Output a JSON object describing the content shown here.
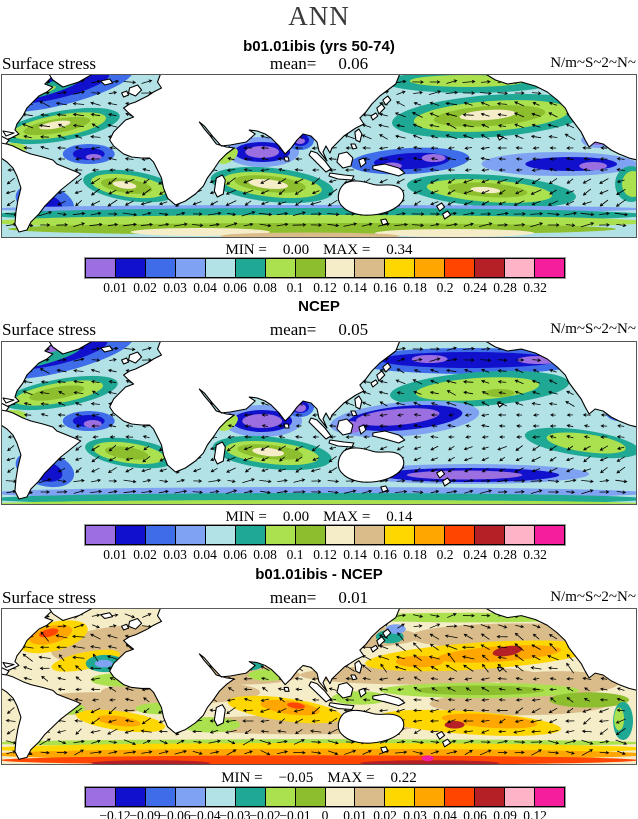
{
  "figure_title": "ANN",
  "palette": [
    "#9b6fdf",
    "#1111cd",
    "#3f6ce8",
    "#7fa3f2",
    "#b2e2e6",
    "#1fa894",
    "#abe14e",
    "#8cbe2e",
    "#f5ecc8",
    "#d9bc8a",
    "#ffd700",
    "#ffa600",
    "#ff4500",
    "#b42025",
    "#ffb3c6",
    "#f51f9e"
  ],
  "panels": [
    {
      "title": "b01.01ibis (yrs 50-74)",
      "field_label": "Surface stress",
      "mean_label": "mean=",
      "mean_value": "0.06",
      "units": "N/m~S~2~N~",
      "stats": {
        "min_label": "MIN =",
        "min_value": "0.00",
        "max_label": "MAX =",
        "max_value": "0.34"
      },
      "colorbar_ticks": [
        "0.01",
        "0.02",
        "0.03",
        "0.04",
        "0.06",
        "0.08",
        "0.1",
        "0.12",
        "0.14",
        "0.16",
        "0.18",
        "0.2",
        "0.24",
        "0.28",
        "0.32"
      ]
    },
    {
      "title": "NCEP",
      "field_label": "Surface stress",
      "mean_label": "mean=",
      "mean_value": "0.05",
      "units": "N/m~S~2~N~",
      "stats": {
        "min_label": "MIN =",
        "min_value": "0.00",
        "max_label": "MAX =",
        "max_value": "0.14"
      },
      "colorbar_ticks": [
        "0.01",
        "0.02",
        "0.03",
        "0.04",
        "0.06",
        "0.08",
        "0.1",
        "0.12",
        "0.14",
        "0.16",
        "0.18",
        "0.2",
        "0.24",
        "0.28",
        "0.32"
      ]
    },
    {
      "title": "b01.01ibis - NCEP",
      "field_label": "Surface stress",
      "mean_label": "mean=",
      "mean_value": "0.01",
      "units": "N/m~S~2~N~",
      "stats": {
        "min_label": "MIN =",
        "min_value": "−0.05",
        "max_label": "MAX =",
        "max_value": "0.22"
      },
      "colorbar_ticks": [
        "−0.12",
        "−0.09",
        "−0.06",
        "−0.04",
        "−0.03",
        "−0.02",
        "−0.01",
        "0",
        "0.01",
        "0.02",
        "0.03",
        "0.04",
        "0.06",
        "0.09",
        "0.12"
      ]
    }
  ],
  "chart_data": {
    "type": "heatmap",
    "figure": "Three-panel global surface wind stress maps (filled contours) with stress vector overlay",
    "season": "ANN",
    "units_raw": "N/m~S~2~N~",
    "units_meaning": "N/m^2",
    "legend_position": "below each panel",
    "panels": [
      {
        "title": "b01.01ibis (yrs 50-74)",
        "variable": "Surface stress",
        "mean": 0.06,
        "min": 0.0,
        "max": 0.34,
        "contour_levels": [
          0.01,
          0.02,
          0.03,
          0.04,
          0.06,
          0.08,
          0.1,
          0.12,
          0.14,
          0.16,
          0.18,
          0.2,
          0.24,
          0.28,
          0.32
        ]
      },
      {
        "title": "NCEP",
        "variable": "Surface stress",
        "mean": 0.05,
        "min": 0.0,
        "max": 0.14,
        "contour_levels": [
          0.01,
          0.02,
          0.03,
          0.04,
          0.06,
          0.08,
          0.1,
          0.12,
          0.14,
          0.16,
          0.18,
          0.2,
          0.24,
          0.28,
          0.32
        ]
      },
      {
        "title": "b01.01ibis - NCEP",
        "variable": "Surface stress difference",
        "mean": 0.01,
        "min": -0.05,
        "max": 0.22,
        "contour_levels": [
          -0.12,
          -0.09,
          -0.06,
          -0.04,
          -0.03,
          -0.02,
          -0.01,
          0,
          0.01,
          0.02,
          0.03,
          0.04,
          0.06,
          0.09,
          0.12
        ]
      }
    ],
    "palette_hex": [
      "#9b6fdf",
      "#1111cd",
      "#3f6ce8",
      "#7fa3f2",
      "#b2e2e6",
      "#1fa894",
      "#abe14e",
      "#8cbe2e",
      "#f5ecc8",
      "#d9bc8a",
      "#ffd700",
      "#ffa600",
      "#ff4500",
      "#b42025",
      "#ffb3c6",
      "#f51f9e"
    ],
    "map_extent": "global, longitudes 80W eastward around to 80W, ~70N to ~62S, land masked white"
  }
}
